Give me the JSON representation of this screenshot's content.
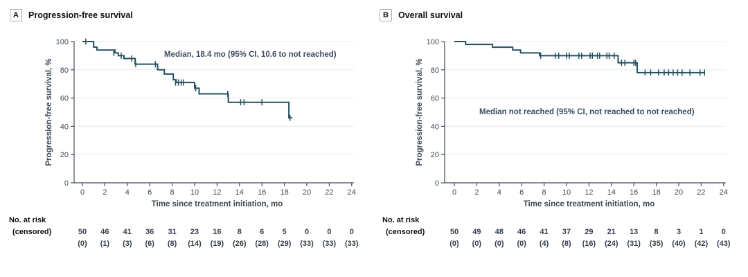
{
  "figure": {
    "background": "#ffffff"
  },
  "colors": {
    "curve": "#245062",
    "axis": "#424b54",
    "tick_text": "#3e4854",
    "grid": "#e8eaec",
    "annotation_text": "#3a4c63",
    "title_text": "#111111",
    "risk_text": "#353f4c"
  },
  "panels": [
    {
      "panel_letter": "A",
      "title": "Progression-free survival",
      "chart_data": {
        "type": "line",
        "subtype": "kaplan-meier-step",
        "title": "Progression-free survival",
        "annotation": "Median, 18.4 mo (95% CI, 10.6 to not reached)",
        "xlabel": "Time since treatment initiation, mo",
        "ylabel": "Progression-free survival, %",
        "xlim": [
          0,
          24
        ],
        "ylim": [
          0,
          100
        ],
        "xticks": [
          0,
          2,
          4,
          6,
          8,
          10,
          12,
          14,
          16,
          18,
          20,
          22,
          24
        ],
        "yticks": [
          0,
          20,
          40,
          60,
          80,
          100
        ],
        "grid": "horizontal",
        "legend": "none",
        "series": [
          {
            "name": "Progression-free survival",
            "color": "#245062",
            "steps": [
              [
                0,
                100
              ],
              [
                1.0,
                96
              ],
              [
                1.3,
                94
              ],
              [
                2.9,
                92
              ],
              [
                3.2,
                90
              ],
              [
                3.7,
                88
              ],
              [
                4.7,
                84
              ],
              [
                6.7,
                80
              ],
              [
                7.3,
                77
              ],
              [
                8.1,
                73
              ],
              [
                8.35,
                71
              ],
              [
                10.0,
                67
              ],
              [
                10.4,
                63
              ],
              [
                13.0,
                57
              ],
              [
                18.4,
                46
              ]
            ],
            "end_time": 18.7,
            "censor_marks": [
              [
                0.3,
                100
              ],
              [
                2.8,
                92
              ],
              [
                3.45,
                90
              ],
              [
                4.4,
                88
              ],
              [
                4.75,
                84
              ],
              [
                6.5,
                84
              ],
              [
                8.3,
                71
              ],
              [
                8.55,
                71
              ],
              [
                8.8,
                71
              ],
              [
                9.0,
                71
              ],
              [
                10.1,
                67
              ],
              [
                12.95,
                63
              ],
              [
                14.1,
                57
              ],
              [
                14.4,
                57
              ],
              [
                16.0,
                57
              ],
              [
                18.5,
                46
              ]
            ]
          }
        ]
      },
      "risk_table": {
        "label_line1": "No. at risk",
        "label_line2": "(censored)",
        "times": [
          0,
          2,
          4,
          6,
          8,
          10,
          12,
          14,
          16,
          18,
          20,
          22,
          24
        ],
        "at_risk": [
          50,
          46,
          41,
          36,
          31,
          23,
          16,
          8,
          6,
          5,
          0,
          0,
          0
        ],
        "censored": [
          0,
          1,
          3,
          6,
          8,
          14,
          19,
          26,
          28,
          29,
          33,
          33,
          33
        ]
      }
    },
    {
      "panel_letter": "B",
      "title": "Overall survival",
      "chart_data": {
        "type": "line",
        "subtype": "kaplan-meier-step",
        "title": "Overall survival",
        "annotation": "Median not reached (95% CI, not reached to not reached)",
        "xlabel": "Time since treatment initiation, mo",
        "ylabel": "Progression-free survival, %",
        "xlim": [
          0,
          24
        ],
        "ylim": [
          0,
          100
        ],
        "xticks": [
          0,
          2,
          4,
          6,
          8,
          10,
          12,
          14,
          16,
          18,
          20,
          22,
          24
        ],
        "yticks": [
          0,
          20,
          40,
          60,
          80,
          100
        ],
        "grid": "horizontal",
        "legend": "none",
        "series": [
          {
            "name": "Overall survival",
            "color": "#245062",
            "steps": [
              [
                0,
                100
              ],
              [
                1.0,
                98
              ],
              [
                3.4,
                96
              ],
              [
                5.2,
                94
              ],
              [
                5.9,
                92
              ],
              [
                7.6,
                90
              ],
              [
                14.6,
                85
              ],
              [
                16.3,
                78
              ]
            ],
            "end_time": 22.3,
            "censor_marks": [
              [
                7.7,
                90
              ],
              [
                9.0,
                90
              ],
              [
                9.3,
                90
              ],
              [
                10.0,
                90
              ],
              [
                10.25,
                90
              ],
              [
                11.1,
                90
              ],
              [
                11.35,
                90
              ],
              [
                12.1,
                90
              ],
              [
                12.3,
                90
              ],
              [
                12.75,
                90
              ],
              [
                12.95,
                90
              ],
              [
                13.6,
                90
              ],
              [
                13.8,
                90
              ],
              [
                14.25,
                90
              ],
              [
                14.9,
                85
              ],
              [
                15.2,
                85
              ],
              [
                16.0,
                85
              ],
              [
                16.15,
                85
              ],
              [
                17.0,
                78
              ],
              [
                17.5,
                78
              ],
              [
                18.2,
                78
              ],
              [
                18.7,
                78
              ],
              [
                19.1,
                78
              ],
              [
                19.5,
                78
              ],
              [
                19.9,
                78
              ],
              [
                20.3,
                78
              ],
              [
                21.0,
                78
              ],
              [
                21.9,
                78
              ],
              [
                22.3,
                78
              ]
            ]
          }
        ]
      },
      "risk_table": {
        "label_line1": "No. at risk",
        "label_line2": "(censored)",
        "times": [
          0,
          2,
          4,
          6,
          8,
          10,
          12,
          14,
          16,
          18,
          20,
          22,
          24
        ],
        "at_risk": [
          50,
          49,
          48,
          46,
          41,
          37,
          29,
          21,
          13,
          8,
          3,
          1,
          0
        ],
        "censored": [
          0,
          0,
          0,
          0,
          4,
          8,
          16,
          24,
          31,
          35,
          40,
          42,
          43
        ]
      }
    }
  ]
}
